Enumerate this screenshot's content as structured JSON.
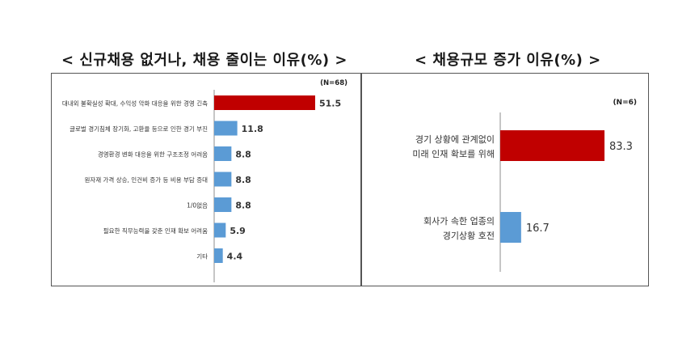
{
  "left": {
    "title": "< 신규채용 없거나, 채용 줄이는 이유(%) >",
    "chart_data": {
      "type": "bar",
      "orientation": "horizontal",
      "note": "(N=68)",
      "categories": [
        "대내외 불확실성 확대, 수익성 악화 대응을 위한 경영 긴축",
        "글로벌 경기침체 장기화, 고환율 등으로 인한 경기 부진",
        "경영환경 변화 대응을 위한 구조조정 어려움",
        "원자재 가격 상승, 인건비 증가 등 비용 부담 증대",
        "1/0없음",
        "필요한 직무능력을 갖춘 인재 확보 어려움",
        "기타"
      ],
      "values": [
        51.5,
        11.8,
        8.8,
        8.8,
        8.8,
        5.9,
        4.4
      ],
      "value_labels": [
        "51.5",
        "11.8",
        "8.8",
        "8.8",
        "8.8",
        "5.9",
        "4.4"
      ],
      "highlight_index": 0
    }
  },
  "right": {
    "title": "< 채용규모 증가 이유(%) >",
    "chart_data": {
      "type": "bar",
      "orientation": "horizontal",
      "note": "(N=6)",
      "categories": [
        [
          "경기 상황에 관계없이",
          "미래 인재 확보를 위해"
        ],
        [
          "회사가 속한 업종의",
          "경기상황 호전"
        ]
      ],
      "values": [
        83.3,
        16.7
      ],
      "value_labels": [
        "83.3",
        "16.7"
      ],
      "highlight_index": 0
    }
  },
  "colors": {
    "highlight": "#c00000",
    "normal": "#5b9bd5"
  }
}
